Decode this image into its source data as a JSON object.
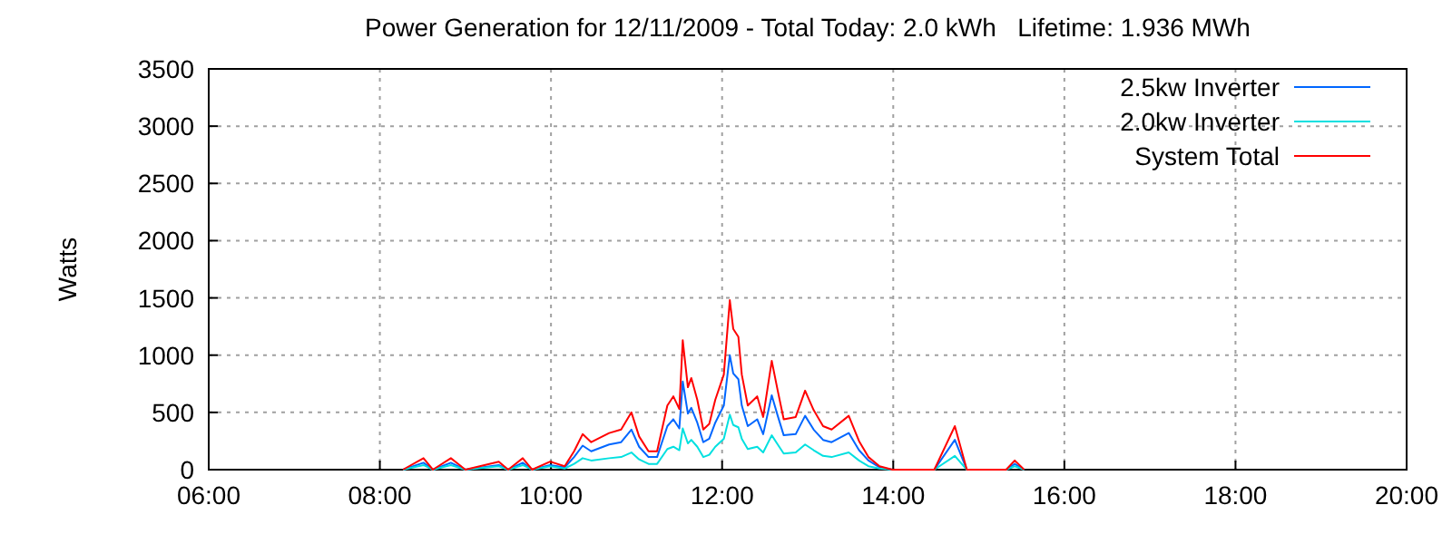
{
  "chart_data": {
    "type": "line",
    "title": "Power Generation for 12/11/2009 - Total Today: 2.0 kWh   Lifetime: 1.936 MWh",
    "ylabel": "Watts",
    "x": [
      8.27,
      8.51,
      8.62,
      8.83,
      9.0,
      9.39,
      9.5,
      9.67,
      9.78,
      9.99,
      10.16,
      10.27,
      10.37,
      10.47,
      10.68,
      10.82,
      10.94,
      11.03,
      11.14,
      11.24,
      11.36,
      11.43,
      11.5,
      11.54,
      11.6,
      11.64,
      11.71,
      11.78,
      11.85,
      11.92,
      12.02,
      12.09,
      12.13,
      12.19,
      12.23,
      12.3,
      12.41,
      12.48,
      12.58,
      12.65,
      12.72,
      12.86,
      12.97,
      13.07,
      13.18,
      13.28,
      13.48,
      13.6,
      13.71,
      13.84,
      13.99,
      14.48,
      14.72,
      14.86,
      15.32,
      15.42,
      15.53
    ],
    "series": [
      {
        "name": "2.5kw Inverter",
        "color": "#0066ff",
        "values": [
          0,
          60,
          0,
          60,
          0,
          40,
          0,
          60,
          0,
          40,
          20,
          110,
          210,
          160,
          220,
          240,
          350,
          200,
          110,
          110,
          380,
          440,
          360,
          770,
          490,
          540,
          410,
          240,
          270,
          410,
          560,
          1000,
          840,
          790,
          560,
          380,
          440,
          310,
          650,
          470,
          300,
          310,
          470,
          350,
          260,
          240,
          320,
          170,
          80,
          20,
          0,
          0,
          260,
          0,
          0,
          50,
          0
        ]
      },
      {
        "name": "2.0kw Inverter",
        "color": "#00e0e0",
        "values": [
          0,
          40,
          0,
          40,
          0,
          30,
          0,
          40,
          0,
          30,
          10,
          50,
          100,
          80,
          100,
          110,
          150,
          90,
          50,
          50,
          180,
          200,
          170,
          360,
          230,
          260,
          200,
          110,
          130,
          200,
          270,
          480,
          390,
          370,
          270,
          180,
          200,
          150,
          300,
          220,
          140,
          150,
          220,
          170,
          120,
          110,
          150,
          80,
          30,
          10,
          0,
          0,
          120,
          0,
          0,
          30,
          0
        ]
      },
      {
        "name": "System Total",
        "color": "#ff0000",
        "values": [
          0,
          100,
          0,
          100,
          0,
          70,
          0,
          100,
          0,
          70,
          30,
          160,
          310,
          240,
          320,
          350,
          500,
          290,
          160,
          160,
          560,
          640,
          530,
          1130,
          720,
          800,
          610,
          350,
          400,
          610,
          830,
          1480,
          1230,
          1160,
          830,
          560,
          640,
          460,
          950,
          690,
          440,
          460,
          690,
          520,
          380,
          350,
          470,
          250,
          110,
          30,
          0,
          0,
          380,
          0,
          0,
          80,
          0
        ]
      }
    ],
    "xlim": [
      6,
      20
    ],
    "xticks": [
      {
        "value": 6,
        "label": "06:00"
      },
      {
        "value": 8,
        "label": "08:00"
      },
      {
        "value": 10,
        "label": "10:00"
      },
      {
        "value": 12,
        "label": "12:00"
      },
      {
        "value": 14,
        "label": "14:00"
      },
      {
        "value": 16,
        "label": "16:00"
      },
      {
        "value": 18,
        "label": "18:00"
      },
      {
        "value": 20,
        "label": "20:00"
      }
    ],
    "ylim": [
      0,
      3500
    ],
    "yticks": [
      0,
      500,
      1000,
      1500,
      2000,
      2500,
      3000,
      3500
    ],
    "grid": true,
    "legend": "top right",
    "line_style": "solid",
    "marker": "none"
  }
}
